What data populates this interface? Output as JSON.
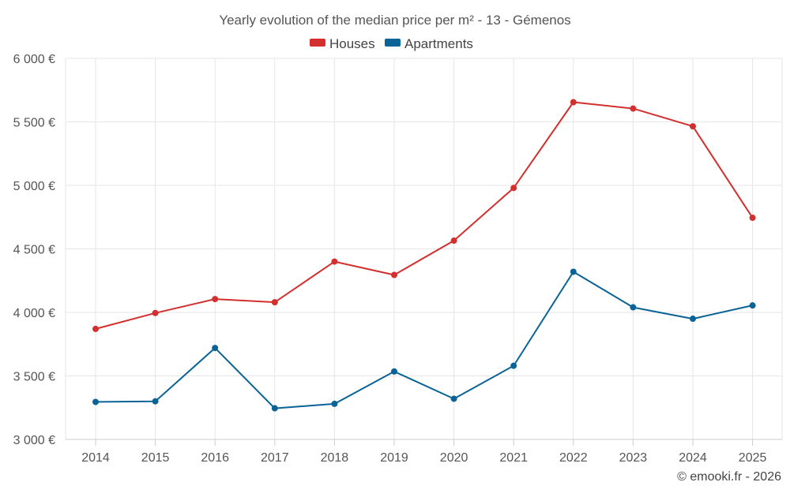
{
  "chart_data": {
    "type": "line",
    "title": "Yearly evolution of the median price per m² - 13 - Gémenos",
    "categories": [
      "2014",
      "2015",
      "2016",
      "2017",
      "2018",
      "2019",
      "2020",
      "2021",
      "2022",
      "2023",
      "2024",
      "2025"
    ],
    "series": [
      {
        "name": "Houses",
        "color": "#d32f2f",
        "values": [
          3870,
          3995,
          4105,
          4080,
          4400,
          4295,
          4565,
          4980,
          5655,
          5605,
          5465,
          4745
        ]
      },
      {
        "name": "Apartments",
        "color": "#0a6396",
        "values": [
          3295,
          3300,
          3720,
          3245,
          3280,
          3535,
          3320,
          3580,
          4320,
          4040,
          3950,
          4055
        ]
      }
    ],
    "ylim": [
      3000,
      6000
    ],
    "yticks": [
      3000,
      3500,
      4000,
      4500,
      5000,
      5500,
      6000
    ],
    "ytick_labels": [
      "3 000 €",
      "3 500 €",
      "4 000 €",
      "4 500 €",
      "5 000 €",
      "5 500 €",
      "6 000 €"
    ],
    "xlabel": "",
    "ylabel": "",
    "legend_position": "top-center",
    "grid": true,
    "credit": "© emooki.fr - 2026"
  }
}
